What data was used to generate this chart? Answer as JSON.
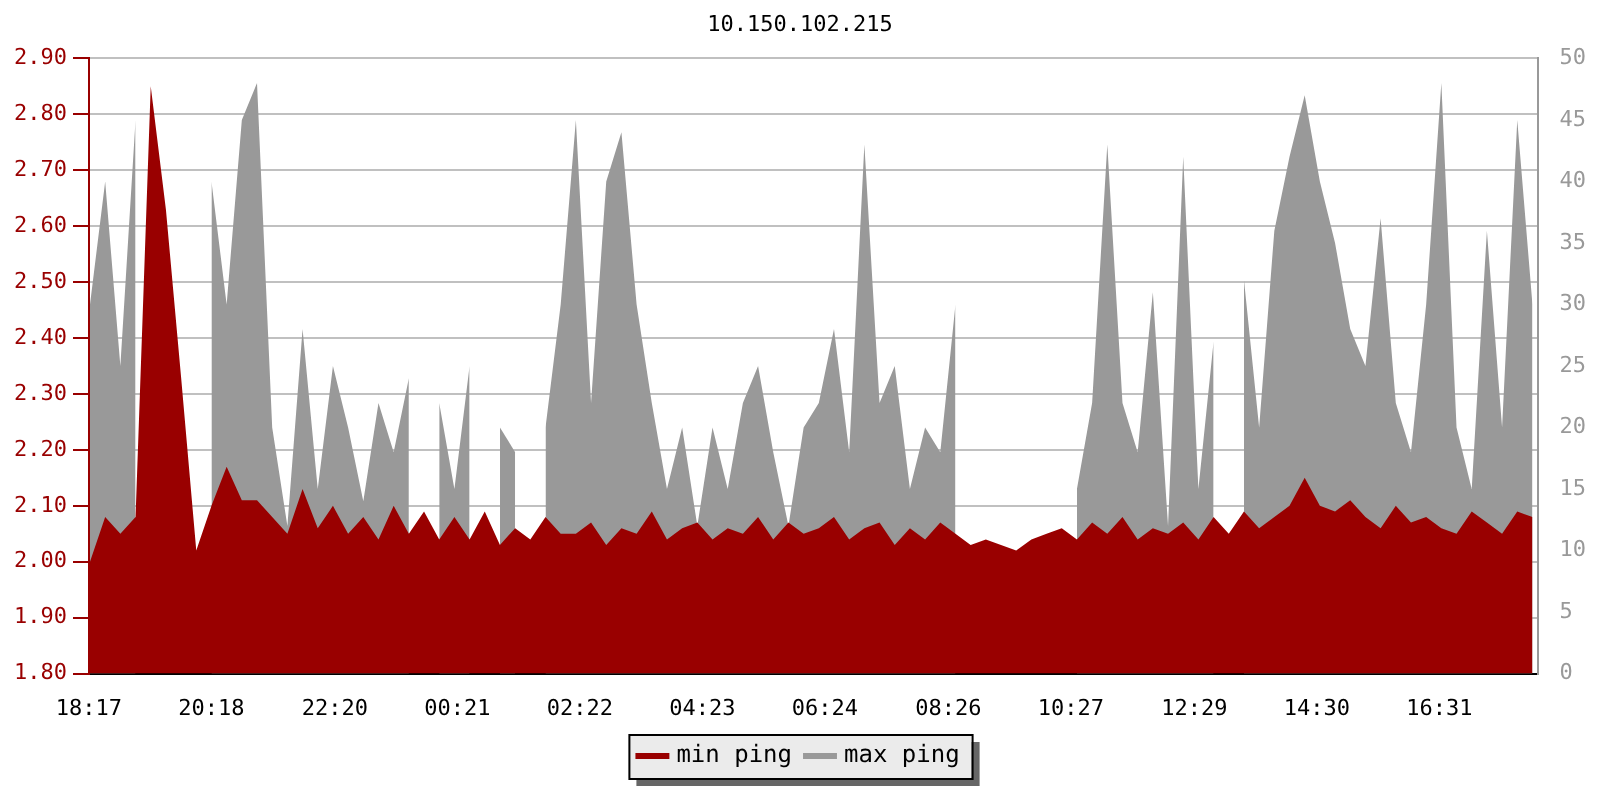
{
  "chart_data": {
    "type": "area",
    "title": "10.150.102.215",
    "x": [
      "--01-01T18:18",
      "--01-01T18:33",
      "--01-01T18:48",
      "--01-01T19:03",
      "--01-01T19:18",
      "--01-01T19:33",
      "--01-01T19:48",
      "--01-01T20:03",
      "--01-01T20:18",
      "--01-01T20:33",
      "--01-01T20:48",
      "--01-01T21:03",
      "--01-01T21:18",
      "--01-01T21:33",
      "--01-01T21:48",
      "--01-01T22:03",
      "--01-01T22:18",
      "--01-01T22:33",
      "--01-01T22:48",
      "--01-01T23:03",
      "--01-01T23:18",
      "--01-01T23:33",
      "--01-01T23:48",
      "--01-02T00:03",
      "--01-02T00:18",
      "--01-02T00:33",
      "--01-02T00:48",
      "--01-02T01:03",
      "--01-02T01:18",
      "--01-02T01:33",
      "--01-02T01:48",
      "--01-02T02:03",
      "--01-02T02:18",
      "--01-02T02:33",
      "--01-02T02:48",
      "--01-02T03:03",
      "--01-02T03:18",
      "--01-02T03:33",
      "--01-02T03:48",
      "--01-02T04:03",
      "--01-02T04:18",
      "--01-02T04:33",
      "--01-02T04:48",
      "--01-02T05:03",
      "--01-02T05:18",
      "--01-02T05:33",
      "--01-02T05:48",
      "--01-02T06:03",
      "--01-02T06:18",
      "--01-02T06:33",
      "--01-02T06:48",
      "--01-02T07:03",
      "--01-02T07:18",
      "--01-02T07:33",
      "--01-02T07:48",
      "--01-02T08:03",
      "--01-02T08:18",
      "--01-02T08:33",
      "--01-02T08:48",
      "--01-02T09:03",
      "--01-02T09:18",
      "--01-02T09:33",
      "--01-02T09:48",
      "--01-02T10:03",
      "--01-02T10:18",
      "--01-02T10:33",
      "--01-02T10:48",
      "--01-02T11:03",
      "--01-02T11:18",
      "--01-02T11:33",
      "--01-02T11:48",
      "--01-02T12:03",
      "--01-02T12:18",
      "--01-02T12:33",
      "--01-02T12:48",
      "--01-02T13:03",
      "--01-02T13:18",
      "--01-02T13:33",
      "--01-02T13:48",
      "--01-02T14:03",
      "--01-02T14:18",
      "--01-02T14:33",
      "--01-02T14:48",
      "--01-02T15:03",
      "--01-02T15:18",
      "--01-02T15:33",
      "--01-02T15:48",
      "--01-02T16:03",
      "--01-02T16:18",
      "--01-02T16:33",
      "--01-02T16:48",
      "--01-02T17:03",
      "--01-02T17:18",
      "--01-02T17:33",
      "--01-02T17:48",
      "--01-02T18:03"
    ],
    "series": [
      {
        "name": "min ping",
        "color": "#990000",
        "axis": "y",
        "values": [
          2.0,
          2.08,
          2.05,
          2.08,
          2.85,
          2.63,
          2.33,
          2.02,
          2.1,
          2.17,
          2.11,
          2.11,
          2.08,
          2.05,
          2.13,
          2.06,
          2.1,
          2.05,
          2.08,
          2.04,
          2.1,
          2.05,
          2.09,
          2.04,
          2.08,
          2.04,
          2.09,
          2.03,
          2.06,
          2.04,
          2.08,
          2.05,
          2.05,
          2.07,
          2.03,
          2.06,
          2.05,
          2.09,
          2.04,
          2.06,
          2.07,
          2.04,
          2.06,
          2.05,
          2.08,
          2.04,
          2.07,
          2.05,
          2.06,
          2.08,
          2.04,
          2.06,
          2.07,
          2.03,
          2.06,
          2.04,
          2.07,
          2.05,
          2.03,
          2.04,
          2.03,
          2.02,
          2.04,
          2.05,
          2.06,
          2.04,
          2.07,
          2.05,
          2.08,
          2.04,
          2.06,
          2.05,
          2.07,
          2.04,
          2.08,
          2.05,
          2.09,
          2.06,
          2.08,
          2.1,
          2.15,
          2.1,
          2.09,
          2.11,
          2.08,
          2.06,
          2.1,
          2.07,
          2.08,
          2.06,
          2.05,
          2.09,
          2.07,
          2.05,
          2.09,
          2.08
        ]
      },
      {
        "name": "max ping",
        "color": "#999999",
        "axis": "y2",
        "values": [
          30,
          40,
          25,
          45,
          null,
          null,
          null,
          null,
          40,
          30,
          45,
          48,
          20,
          12,
          28,
          15,
          25,
          20,
          14,
          22,
          18,
          24,
          null,
          22,
          15,
          25,
          null,
          20,
          18,
          null,
          20,
          30,
          45,
          22,
          40,
          44,
          30,
          22,
          15,
          20,
          12,
          20,
          15,
          22,
          25,
          18,
          12,
          20,
          22,
          28,
          18,
          43,
          22,
          25,
          15,
          20,
          18,
          30,
          null,
          null,
          null,
          null,
          null,
          null,
          null,
          15,
          22,
          43,
          22,
          18,
          31,
          12,
          42,
          15,
          27,
          null,
          32,
          20,
          36,
          42,
          47,
          40,
          35,
          28,
          25,
          37,
          22,
          18,
          30,
          48,
          20,
          15,
          36,
          20,
          45,
          30
        ]
      }
    ],
    "xlim": [
      "--01-01T18:17",
      "--01-02T18:08"
    ],
    "xticks": [
      {
        "value": "--01-01T18:17",
        "label": "18:17"
      },
      {
        "value": "--01-01T20:18",
        "label": "20:18"
      },
      {
        "value": "--01-01T22:20",
        "label": "22:20"
      },
      {
        "value": "--01-02T00:21",
        "label": "00:21"
      },
      {
        "value": "--01-02T02:22",
        "label": "02:22"
      },
      {
        "value": "--01-02T04:23",
        "label": "04:23"
      },
      {
        "value": "--01-02T06:24",
        "label": "06:24"
      },
      {
        "value": "--01-02T08:26",
        "label": "08:26"
      },
      {
        "value": "--01-02T10:27",
        "label": "10:27"
      },
      {
        "value": "--01-02T12:29",
        "label": "12:29"
      },
      {
        "value": "--01-02T14:30",
        "label": "14:30"
      },
      {
        "value": "--01-02T16:31",
        "label": "16:31"
      }
    ],
    "ylim": [
      1.8,
      2.9
    ],
    "yticks": [
      {
        "value": 1.8,
        "label": "1.80"
      },
      {
        "value": 1.9,
        "label": "1.90"
      },
      {
        "value": 2.0,
        "label": "2.00"
      },
      {
        "value": 2.1,
        "label": "2.10"
      },
      {
        "value": 2.2,
        "label": "2.20"
      },
      {
        "value": 2.3,
        "label": "2.30"
      },
      {
        "value": 2.4,
        "label": "2.40"
      },
      {
        "value": 2.5,
        "label": "2.50"
      },
      {
        "value": 2.6,
        "label": "2.60"
      },
      {
        "value": 2.7,
        "label": "2.70"
      },
      {
        "value": 2.8,
        "label": "2.80"
      },
      {
        "value": 2.9,
        "label": "2.90"
      }
    ],
    "y2lim": [
      0,
      50
    ],
    "y2ticks": [
      0,
      5,
      10,
      15,
      20,
      25,
      30,
      35,
      40,
      45,
      50
    ],
    "grid": "y",
    "legend": "bottom",
    "marker": "none"
  }
}
